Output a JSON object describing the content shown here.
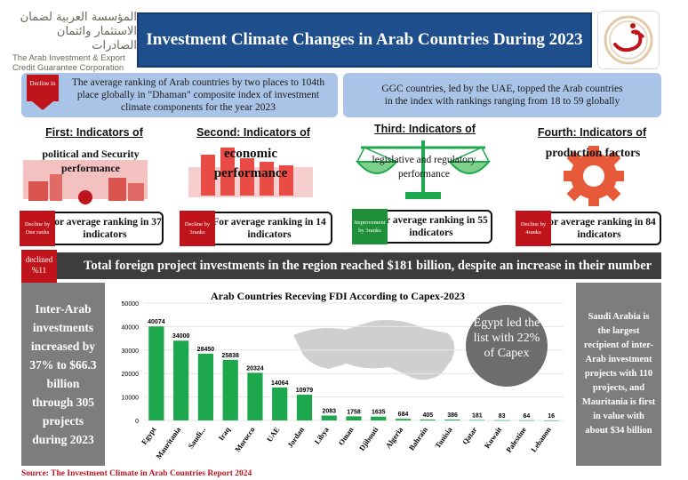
{
  "header": {
    "title": "Investment Climate Changes in Arab Countries During 2023",
    "org_ar_line1": "المؤسسة العربية لضمان",
    "org_ar_line2": "الاستثمار وائتمان الصادرات",
    "org_en_line1": "The Arab Investment & Export",
    "org_en_line2": "Credit Guarantee Corporation"
  },
  "summary": {
    "left_badge": "Decline in",
    "left_text": "The average ranking of Arab countries by two places to 104th place globally in \"Dhaman\" composite index of investment climate components for the year 2023",
    "right_text": "GGC countries, led by the UAE, topped the Arab countries in the index with rankings ranging from 18 to 59 globally"
  },
  "indicators": [
    {
      "title": "First: Indicators of",
      "label": "political and Security performance",
      "badge": "Decline by One ranks",
      "text": "For average ranking in 37 indicators",
      "badge_color": "#c0141c"
    },
    {
      "title": "Second: Indicators of",
      "label": "economic performance",
      "badge": "Decline by 3ranks",
      "text": "For average ranking in 14 indicators",
      "badge_color": "#c0141c"
    },
    {
      "title": "Third: Indicators of",
      "label": "legislative and regulatory performance",
      "badge": "Improvement by 3ranks",
      "text": "For average ranking in 55 indicators",
      "badge_color": "#1f8f3a"
    },
    {
      "title": "Fourth: Indicators of",
      "label": "production factors",
      "badge": "Decline by 4ranks",
      "text": "For average ranking in 84 indicators",
      "badge_color": "#c0141c"
    }
  ],
  "banner": {
    "badge": "declined %11",
    "text": "Total foreign project investments in the region reached $181 billion, despite an increase in their number"
  },
  "left_panel": {
    "text": "Inter-Arab investments increased by 37% to $66.3 billion through 305 projects during 2023"
  },
  "right_panel": {
    "text": "Saudi Arabia is the largest recipient of inter-Arab investment projects with 110 projects, and Mauritania is first in value with about $34 billion"
  },
  "egypt_note": "Egypt led the list with 22% of Capex",
  "chart_data": {
    "type": "bar",
    "title": "Arab Countries Receving FDI According to Capex-2023",
    "categories": [
      "Egypt",
      "Mauritania",
      "Saudi...",
      "Iraq",
      "Morocco",
      "UAE",
      "Jordan",
      "Libya",
      "Oman",
      "Djibouti",
      "Algeria",
      "Bahrain",
      "Tunisia",
      "Qatar",
      "Kuwait",
      "Palestine",
      "Lebanon"
    ],
    "values": [
      40074,
      34000,
      28450,
      25838,
      20324,
      14064,
      10979,
      2083,
      1758,
      1635,
      684,
      405,
      386,
      181,
      83,
      64,
      16
    ],
    "ylim": [
      0,
      50000
    ],
    "yticks": [
      0,
      10000,
      20000,
      30000,
      40000,
      50000
    ],
    "xlabel": "",
    "ylabel": "",
    "bar_color": "#1ea84e",
    "grid": true
  },
  "footer": {
    "source": "Source: The Investment Climate in Arab Countries Report 2024"
  },
  "colors": {
    "title_bar": "#1f4e8c",
    "info_box": "#a9c4e6",
    "accent_red": "#c0141c",
    "accent_green": "#1f8f3a",
    "panel_gray": "#7d7d7d",
    "banner": "#3d3d3d"
  }
}
